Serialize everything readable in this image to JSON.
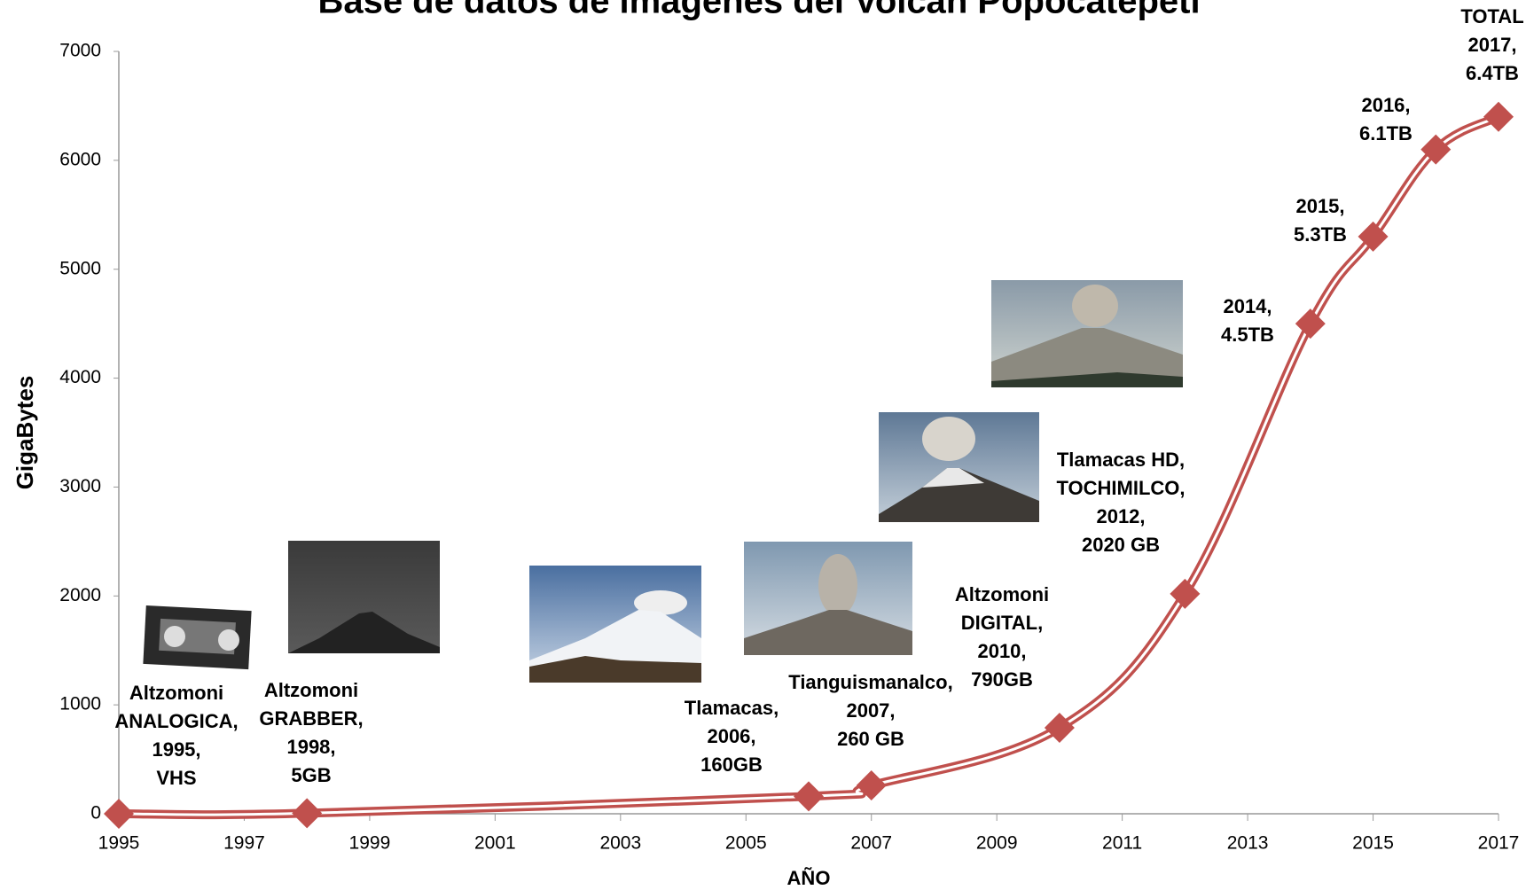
{
  "chart_data": {
    "type": "line",
    "title": "Base de datos de imágenes del Volcán Popocatépetl",
    "x_label": "AÑO",
    "y_label": "GigaBytes",
    "x": [
      1995,
      1998,
      2006,
      2007,
      2010,
      2012,
      2014,
      2015,
      2016,
      2017
    ],
    "series": [
      {
        "name": "GigaBytes",
        "color": "#c0504d",
        "values": [
          0,
          5,
          160,
          260,
          790,
          2020,
          4500,
          5300,
          6100,
          6400
        ]
      }
    ],
    "annotations": [
      [
        "Altzomoni",
        "ANALOGICA,",
        "1995,",
        "VHS"
      ],
      [
        "Altzomoni",
        "GRABBER,",
        "1998,",
        "5GB"
      ],
      [
        "Tlamacas,",
        "2006,",
        "160GB"
      ],
      [
        "Tianguismanalco,",
        "2007,",
        "260 GB"
      ],
      [
        "Altzomoni",
        "DIGITAL,",
        "2010,",
        "790GB"
      ],
      [
        "Tlamacas HD,",
        "TOCHIMILCO,",
        "2012,",
        "2020 GB"
      ],
      [
        "2014,",
        "4.5TB"
      ],
      [
        "2015,",
        "5.3TB"
      ],
      [
        "2016,",
        "6.1TB"
      ],
      [
        "TOTAL",
        "2017,",
        "6.4TB"
      ]
    ],
    "xlim": [
      1995,
      2017
    ],
    "xticks": [
      1995,
      1997,
      1999,
      2001,
      2003,
      2005,
      2007,
      2009,
      2011,
      2013,
      2015,
      2017
    ],
    "ylim": [
      0,
      7000
    ],
    "yticks": [
      0,
      1000,
      2000,
      3000,
      4000,
      5000,
      6000,
      7000
    ],
    "grid": false
  }
}
